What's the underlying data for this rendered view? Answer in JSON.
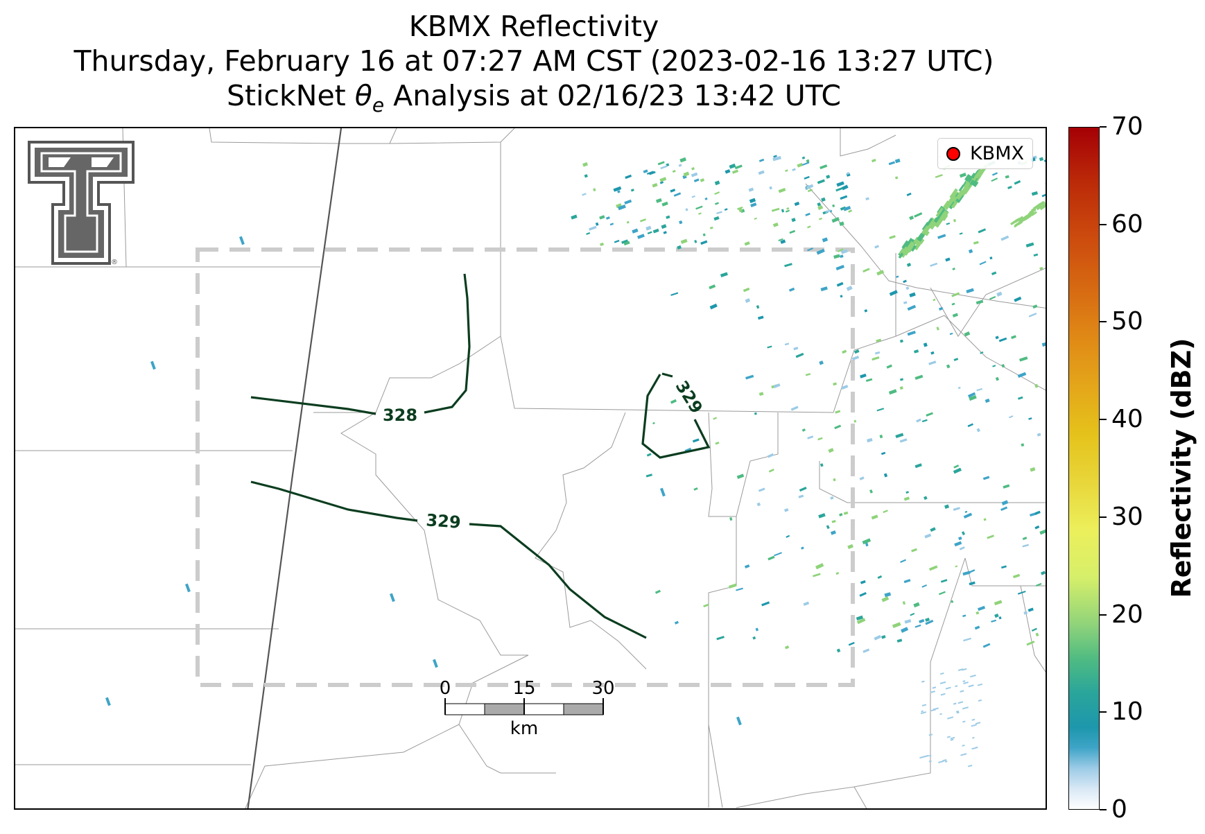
{
  "title": {
    "line1": "KBMX Reflectivity",
    "line2": "Thursday, February 16 at 07:27 AM CST (2023-02-16 13:27 UTC)",
    "line3": "StickNet θe Analysis at 02/16/23 13:42 UTC"
  },
  "logo": {
    "name": "Texas Tech double-T logo",
    "symbol": "®"
  },
  "legend": {
    "label": "KBMX",
    "marker_color": "#ff0000"
  },
  "contours": [
    {
      "value": "328",
      "label": "328",
      "color": "#0b3d1f"
    },
    {
      "value": "329",
      "label": "329",
      "color": "#0b3d1f"
    },
    {
      "value": "329",
      "label": "329",
      "color": "#0b3d1f"
    }
  ],
  "analysis_box": {
    "style": "dashed",
    "color": "#cccccc"
  },
  "scale_bar": {
    "labels": [
      "0",
      "15",
      "30"
    ],
    "unit": "km"
  },
  "colorbar": {
    "title": "Reflectivity (dBZ)",
    "ticks": [
      "0",
      "10",
      "20",
      "30",
      "40",
      "50",
      "60",
      "70"
    ],
    "min": 0,
    "max": 70,
    "colors": [
      "#ffffff",
      "#1d97ac",
      "#4fbb82",
      "#ecef5b",
      "#e5c21b",
      "#e08a16",
      "#cc4a0e",
      "#a50006"
    ]
  }
}
